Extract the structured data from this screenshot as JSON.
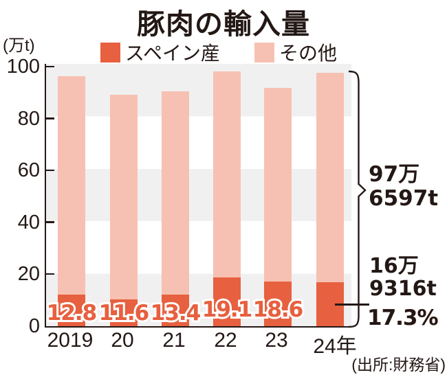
{
  "title": "豚肉の輸入量",
  "y_axis": {
    "unit_label": "(万t)"
  },
  "legend": {
    "items": [
      {
        "label": "スペイン産",
        "color": "#e7603f"
      },
      {
        "label": "その他",
        "color": "#f6c1b2"
      }
    ]
  },
  "annotations": {
    "total_2024_line1": "97万",
    "total_2024_line2": "6597t",
    "spain_2024_line1": "16万",
    "spain_2024_line2": "9316t",
    "spain_pct": "17.3%"
  },
  "source": "(出所:財務省)",
  "colors": {
    "spain": "#e7603f",
    "other": "#f6c1b2",
    "band_gray": "#f0f0f0",
    "ink": "#231815"
  },
  "chart_data": {
    "type": "bar",
    "stacked": true,
    "title": "豚肉の輸入量",
    "ylabel": "万t",
    "ylim": [
      0,
      100
    ],
    "yticks": [
      0,
      20,
      40,
      60,
      80,
      100
    ],
    "grid": "alternating horizontal bands every 20 units",
    "legend_position": "top",
    "categories": [
      "2019",
      "20",
      "21",
      "22",
      "23",
      "24年"
    ],
    "series": [
      {
        "name": "スペイン産",
        "values": [
          12.3,
          10.4,
          12.1,
          18.8,
          17.1,
          16.9
        ]
      },
      {
        "name": "その他",
        "values": [
          84.0,
          79.0,
          78.4,
          79.5,
          74.9,
          80.8
        ]
      }
    ],
    "totals": [
      96.3,
      89.4,
      90.5,
      98.3,
      92.0,
      97.7
    ],
    "spain_share_pct": [
      12.8,
      11.6,
      13.4,
      19.1,
      18.6,
      17.3
    ],
    "bar_labels_on_chart": [
      "12.8",
      "11.6",
      "13.4",
      "19.1",
      "18.6"
    ],
    "callouts": [
      "97万6597t",
      "16万9316t",
      "17.3%"
    ]
  }
}
